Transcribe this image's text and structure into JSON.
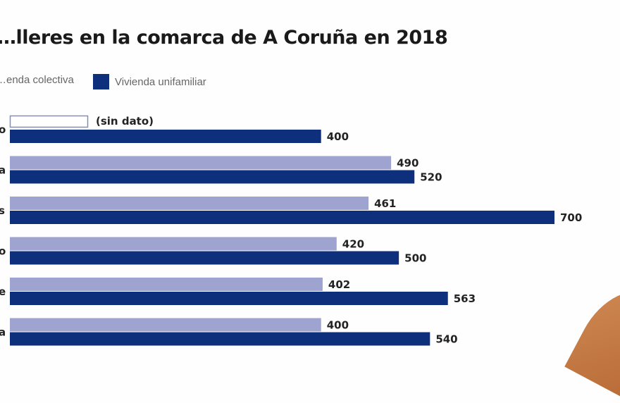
{
  "colors": {
    "colectiva": "#9ea3cf",
    "unifamiliar": "#0e2f7c",
    "nodata_border": "#8a8fa8"
  },
  "chart_data": {
    "type": "bar",
    "orientation": "horizontal",
    "title": "…lleres en la comarca de A Coruña en 2018",
    "legend": [
      "…enda colectiva",
      "Vivienda unifamiliar"
    ],
    "legend_position": "top-left",
    "categories": [
      "…o",
      "…a",
      "…s",
      "…o",
      "…e",
      "…a"
    ],
    "series": [
      {
        "name": "Vivienda colectiva",
        "values": [
          null,
          490,
          461,
          420,
          402,
          400
        ]
      },
      {
        "name": "Vivienda unifamiliar",
        "values": [
          400,
          520,
          700,
          500,
          563,
          540
        ]
      }
    ],
    "null_label": "(sin dato)",
    "xlim": [
      0,
      700
    ],
    "grid": false,
    "xlabel": "",
    "ylabel": ""
  }
}
